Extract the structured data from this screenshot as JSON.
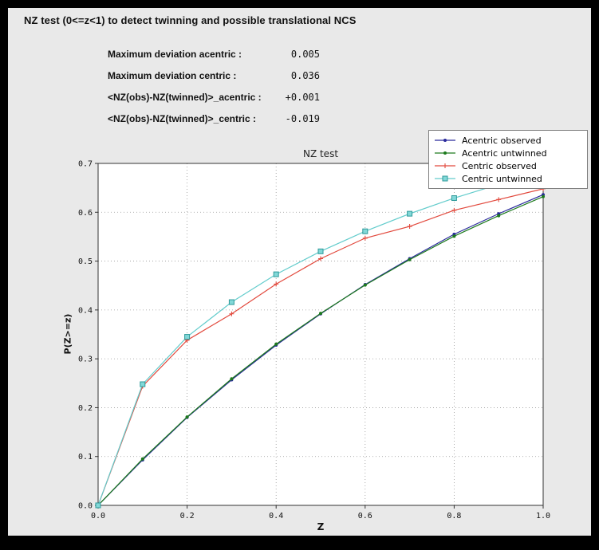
{
  "header": {
    "title": "NZ test (0<=z<1) to detect twinning and possible translational NCS"
  },
  "stats": {
    "rows": [
      {
        "label": "Maximum deviation acentric :",
        "value": "0.005"
      },
      {
        "label": "Maximum deviation centric :",
        "value": "0.036"
      },
      {
        "label": "<NZ(obs)-NZ(twinned)>_acentric :",
        "value": "+0.001"
      },
      {
        "label": "<NZ(obs)-NZ(twinned)>_centric :",
        "value": "-0.019"
      }
    ]
  },
  "chart_data": {
    "type": "line",
    "title": "NZ test",
    "xlabel": "Z",
    "ylabel": "P(Z>=z)",
    "xlim": [
      0.0,
      1.0
    ],
    "ylim": [
      0.0,
      0.7
    ],
    "xticks": [
      0.0,
      0.2,
      0.4,
      0.6,
      0.8,
      1.0
    ],
    "yticks": [
      0.0,
      0.1,
      0.2,
      0.3,
      0.4,
      0.5,
      0.6,
      0.7
    ],
    "grid": true,
    "legend_position": "top-right",
    "plot_bg": "#ffffff",
    "grid_color": "#999999",
    "frame_color": "#333333",
    "x": [
      0.0,
      0.1,
      0.2,
      0.3,
      0.4,
      0.5,
      0.6,
      0.7,
      0.8,
      0.9,
      1.0
    ],
    "series": [
      {
        "name": "Acentric observed",
        "color": "#2a2a9c",
        "marker": "dot",
        "values": [
          0.0,
          0.093,
          0.18,
          0.257,
          0.328,
          0.392,
          0.452,
          0.505,
          0.555,
          0.597,
          0.636
        ]
      },
      {
        "name": "Acentric untwinned",
        "color": "#1d7a1d",
        "marker": "dot",
        "values": [
          0.0,
          0.095,
          0.181,
          0.259,
          0.33,
          0.393,
          0.451,
          0.503,
          0.551,
          0.593,
          0.632
        ]
      },
      {
        "name": "Centric observed",
        "color": "#e2493d",
        "marker": "plus",
        "values": [
          0.0,
          0.244,
          0.338,
          0.392,
          0.453,
          0.505,
          0.547,
          0.571,
          0.604,
          0.626,
          0.648
        ]
      },
      {
        "name": "Centric untwinned",
        "color": "#63cccc",
        "marker": "square",
        "marker_fill": "#82d8d8",
        "marker_edge": "#2f9a9a",
        "values": [
          0.0,
          0.248,
          0.345,
          0.416,
          0.473,
          0.52,
          0.561,
          0.597,
          0.629,
          0.657,
          0.683
        ]
      }
    ]
  }
}
